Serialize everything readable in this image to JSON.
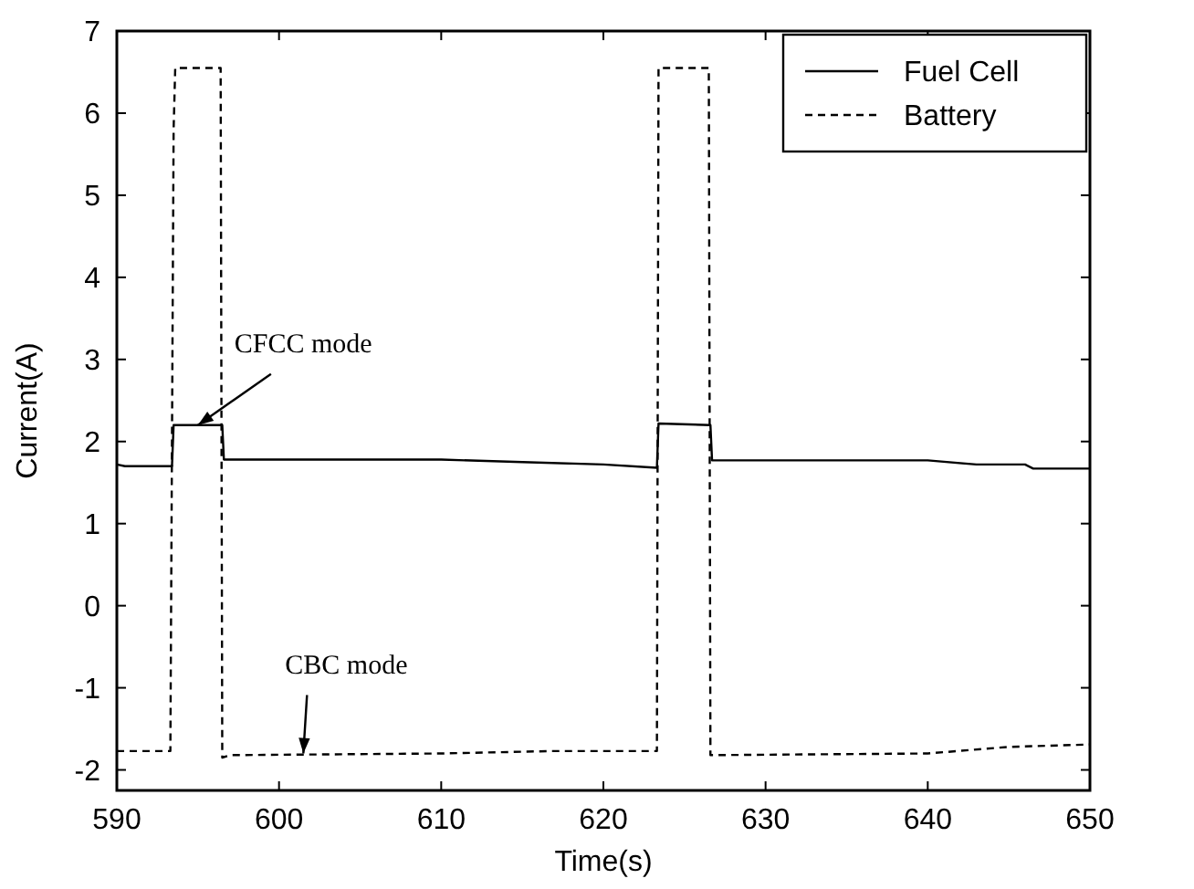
{
  "chart_data": {
    "type": "line",
    "xlabel": "Time(s)",
    "ylabel": "Current(A)",
    "xlim": [
      590,
      650
    ],
    "xticks": [
      590,
      600,
      610,
      620,
      630,
      640,
      650
    ],
    "ylim": [
      -2.25,
      7
    ],
    "yticks": [
      -2,
      -1,
      0,
      1,
      2,
      3,
      4,
      5,
      6,
      7
    ],
    "grid": false,
    "legend": "top right",
    "series": [
      {
        "name": "Fuel Cell",
        "color": "#000000",
        "line_style": "solid",
        "x": [
          590,
          590.5,
          593.4,
          593.5,
          596.5,
          596.6,
          610,
          615,
          620,
          623.3,
          623.4,
          626.6,
          626.7,
          640,
          643,
          646,
          646.5,
          650
        ],
        "values": [
          1.72,
          1.7,
          1.7,
          2.2,
          2.2,
          1.78,
          1.78,
          1.75,
          1.72,
          1.68,
          2.22,
          2.2,
          1.77,
          1.77,
          1.72,
          1.72,
          1.67,
          1.67
        ]
      },
      {
        "name": "Battery",
        "color": "#000000",
        "line_style": "dashed",
        "x": [
          590,
          593.3,
          593.5,
          593.6,
          596.4,
          596.5,
          597,
          610,
          617,
          623.3,
          623.4,
          626.5,
          626.6,
          640,
          645,
          650
        ],
        "values": [
          -1.77,
          -1.77,
          5.8,
          6.55,
          6.55,
          -1.85,
          -1.82,
          -1.8,
          -1.77,
          -1.77,
          6.55,
          6.55,
          -1.82,
          -1.8,
          -1.72,
          -1.69
        ]
      }
    ],
    "annotations": [
      {
        "text": "CFCC mode",
        "x": 595,
        "y": 2.2
      },
      {
        "text": "CBC mode",
        "x": 601.5,
        "y": -1.8
      }
    ]
  }
}
